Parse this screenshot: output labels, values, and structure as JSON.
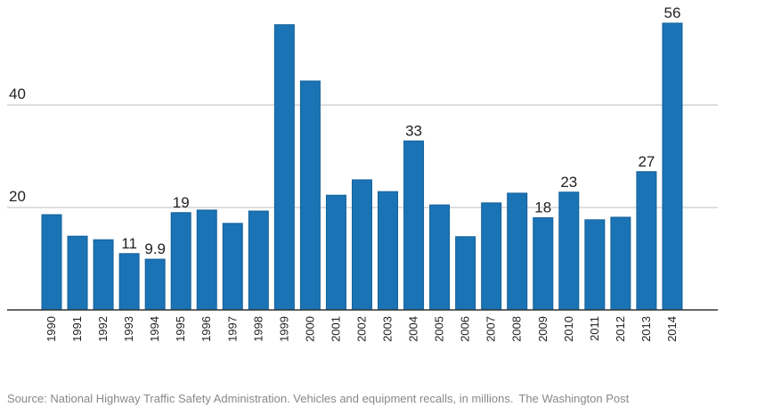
{
  "chart_data": {
    "type": "bar",
    "title": "",
    "xlabel": "",
    "ylabel": "",
    "ylim": [
      0,
      60
    ],
    "yticks": [
      20,
      40
    ],
    "grid": true,
    "bar_color": "#1a73b5",
    "categories": [
      "1990",
      "1991",
      "1992",
      "1993",
      "1994",
      "1995",
      "1996",
      "1997",
      "1998",
      "1999",
      "2000",
      "2001",
      "2002",
      "2003",
      "2004",
      "2005",
      "2006",
      "2007",
      "2008",
      "2009",
      "2010",
      "2011",
      "2012",
      "2013",
      "2014"
    ],
    "values": [
      18.6,
      14.4,
      13.7,
      11,
      9.9,
      19,
      19.5,
      16.9,
      19.3,
      55.7,
      44.7,
      22.4,
      25.4,
      23.1,
      33,
      20.5,
      14.3,
      20.9,
      22.8,
      18,
      23,
      17.6,
      18.1,
      27,
      56
    ],
    "data_labels": {
      "1993": "11",
      "1994": "9.9",
      "1995": "19",
      "2004": "33",
      "2009": "18",
      "2010": "23",
      "2013": "27",
      "2014": "56"
    }
  },
  "footer": {
    "source": "Source: National Highway Traffic Safety Administration. Vehicles and equipment recalls, in millions.",
    "credit": "The Washington Post"
  }
}
